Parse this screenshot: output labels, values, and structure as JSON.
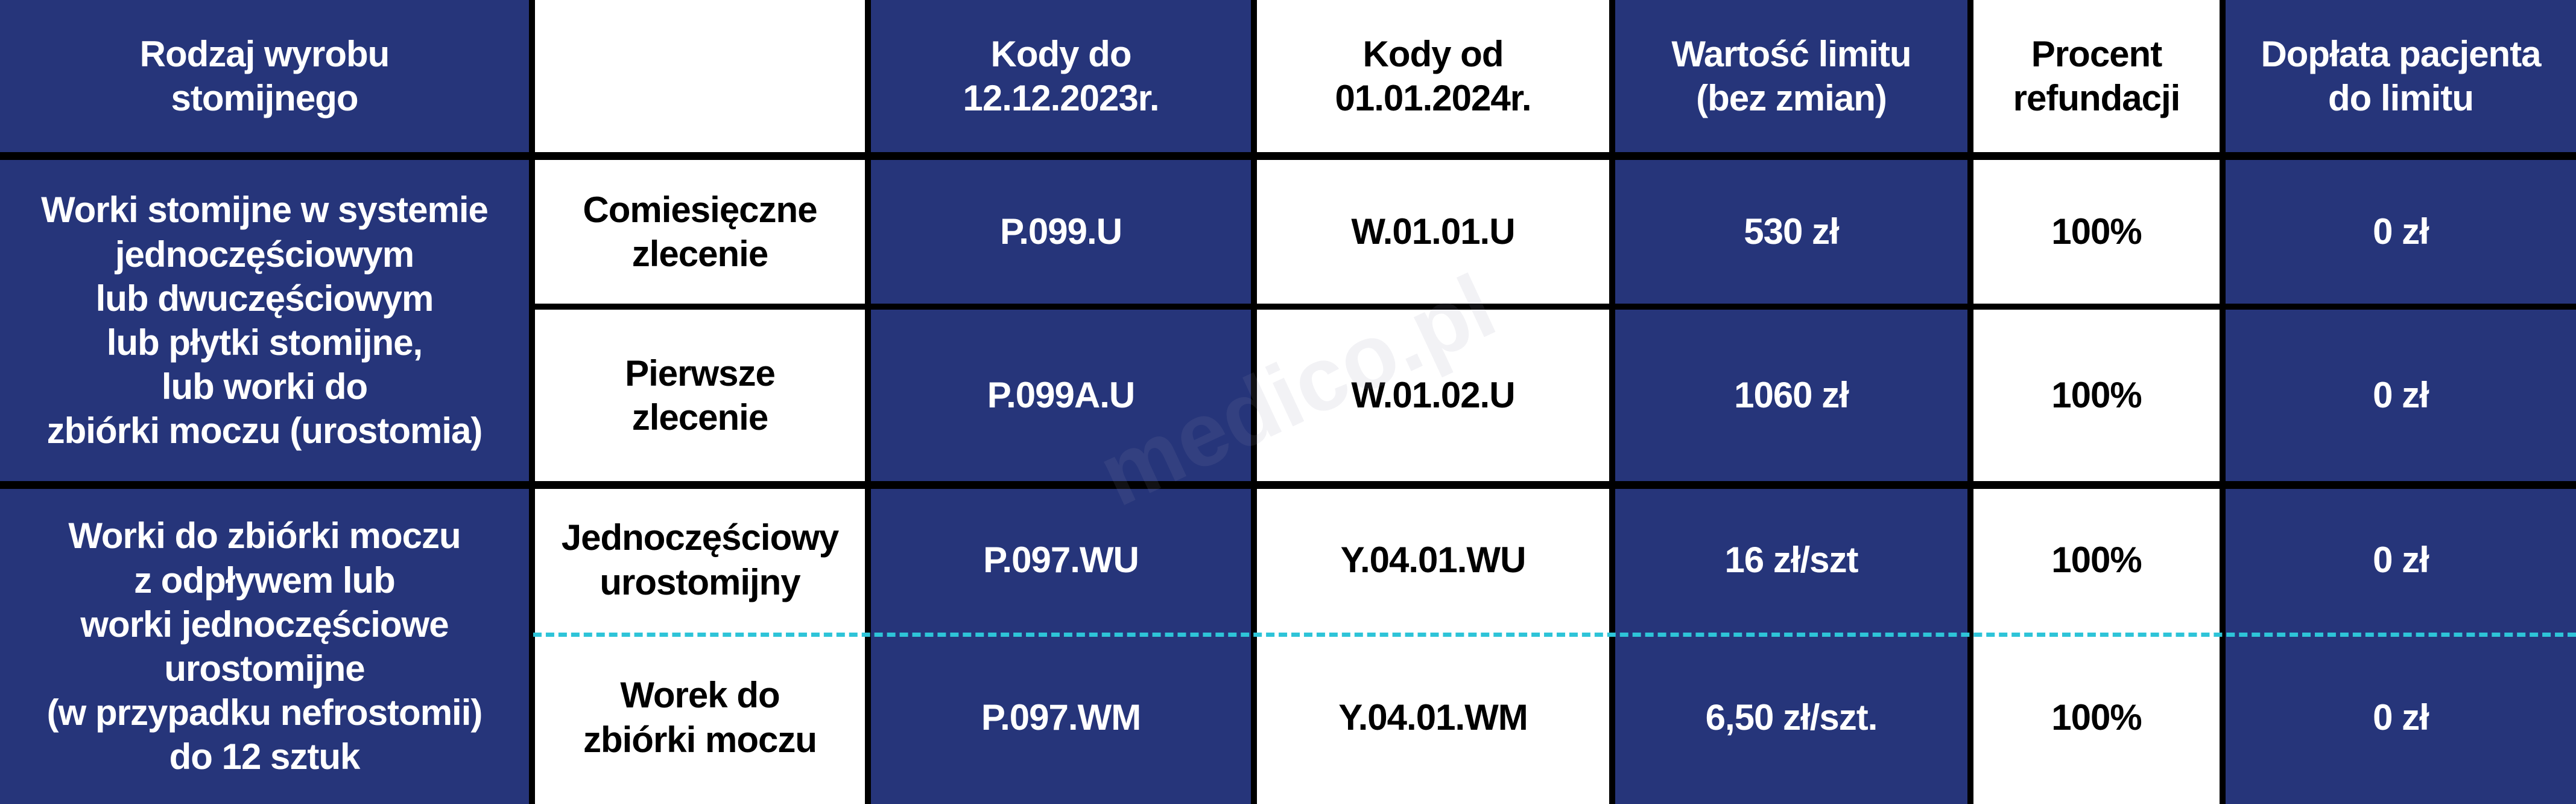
{
  "header": {
    "product_type": "Rodzaj wyrobu\nstomijnego",
    "blank": "",
    "codes_until": "Kody do\n12.12.2023r.",
    "codes_from": "Kody od\n01.01.2024r.",
    "limit_value": "Wartość limitu\n(bez zmian)",
    "refund_percent": "Procent\nrefundacji",
    "patient_copay": "Dopłata pacjenta\ndo limitu"
  },
  "groups": [
    {
      "name": "Worki stomijne w systemie\njednoczęściowym\nlub dwuczęściowym\nlub płytki stomijne,\nlub worki do\nzbiórki moczu (urostomia)",
      "rows": [
        {
          "type": "Comiesięczne\nzlecenie",
          "code_old": "P.099.U",
          "code_new": "W.01.01.U",
          "limit": "530 zł",
          "percent": "100%",
          "copay": "0 zł"
        },
        {
          "type": "Pierwsze\nzlecenie",
          "code_old": "P.099A.U",
          "code_new": "W.01.02.U",
          "limit": "1060 zł",
          "percent": "100%",
          "copay": "0 zł"
        }
      ]
    },
    {
      "name": "Worki do zbiórki moczu\nz odpływem lub\nworki jednoczęściowe\nurostomijne\n(w przypadku nefrostomii)\ndo 12 sztuk",
      "rows": [
        {
          "type": "Jednoczęściowy\nurostomijny",
          "code_old": "P.097.WU",
          "code_new": "Y.04.01.WU",
          "limit": "16 zł/szt",
          "percent": "100%",
          "copay": "0 zł"
        },
        {
          "type": "Worek do\nzbiórki moczu",
          "code_old": "P.097.WM",
          "code_new": "Y.04.01.WM",
          "limit": "6,50 zł/szt.",
          "percent": "100%",
          "copay": "0 zł"
        }
      ]
    }
  ],
  "watermark": "medico.pl",
  "colors": {
    "blue": "#26357a",
    "white": "#ffffff",
    "border": "#000000",
    "dash": "#2ec4d8"
  }
}
